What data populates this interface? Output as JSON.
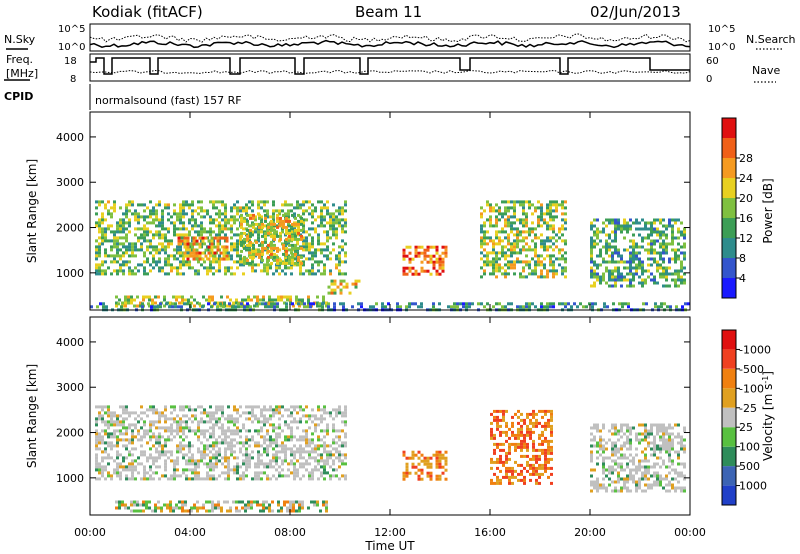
{
  "header": {
    "station": "Kodiak (fitACF)",
    "beam": "Beam 11",
    "date": "02/Jun/2013"
  },
  "control_panels": {
    "nsky_label": "N.Sky",
    "nsearch_label": "N.Search",
    "log_top_label": "10^5",
    "log_bottom_label": "10^0",
    "freq_label_line1": "Freq.",
    "freq_label_line2": "[MHz]",
    "freq_ticks": [
      "18",
      "8"
    ],
    "nave_label": "Nave",
    "nave_ticks": [
      "60",
      "0"
    ],
    "cpid_label": "CPID",
    "cpid_text": "normalsound (fast) 157 RF"
  },
  "chart_data": [
    {
      "type": "heatmap",
      "title": "Power",
      "ylabel": "Slant Range [km]",
      "xlabel": "",
      "x_ticks": [
        "00:00",
        "04:00",
        "08:00",
        "12:00",
        "16:00",
        "20:00",
        "00:00"
      ],
      "x_range_hours": [
        0,
        24
      ],
      "y_ticks": [
        1000,
        2000,
        3000,
        4000
      ],
      "ylim": [
        180,
        4550
      ],
      "colorbar": {
        "label": "Power [dB]",
        "ticks": [
          "4",
          "8",
          "12",
          "16",
          "20",
          "24",
          "28"
        ],
        "colors": [
          "#1a1aff",
          "#3355cc",
          "#2e8c8c",
          "#3c9e56",
          "#7fc040",
          "#e8d020",
          "#f59a20",
          "#f06018",
          "#e01010"
        ]
      },
      "blobs": [
        {
          "t": [
            0.2,
            10.2
          ],
          "r": [
            1000,
            2600
          ],
          "intensity": 0.45
        },
        {
          "t": [
            3.5,
            5.5
          ],
          "r": [
            1300,
            1800
          ],
          "intensity": 0.7
        },
        {
          "t": [
            6.0,
            8.5
          ],
          "r": [
            1200,
            2300
          ],
          "intensity": 0.6
        },
        {
          "t": [
            1.0,
            9.5
          ],
          "r": [
            300,
            500
          ],
          "intensity": 0.55
        },
        {
          "t": [
            9.5,
            10.8
          ],
          "r": [
            550,
            850
          ],
          "intensity": 0.6
        },
        {
          "t": [
            12.5,
            14.2
          ],
          "r": [
            950,
            1600
          ],
          "intensity": 0.8
        },
        {
          "t": [
            15.6,
            19.0
          ],
          "r": [
            900,
            2600
          ],
          "intensity": 0.5
        },
        {
          "t": [
            20.0,
            23.8
          ],
          "r": [
            700,
            2200
          ],
          "intensity": 0.4
        },
        {
          "t": [
            0.0,
            24.0
          ],
          "r": [
            190,
            350
          ],
          "intensity": 0.3
        }
      ]
    },
    {
      "type": "heatmap",
      "title": "Velocity",
      "ylabel": "Slant Range [km]",
      "xlabel": "Time UT",
      "x_ticks": [
        "00:00",
        "04:00",
        "08:00",
        "12:00",
        "16:00",
        "20:00",
        "00:00"
      ],
      "x_range_hours": [
        0,
        24
      ],
      "y_ticks": [
        1000,
        2000,
        3000,
        4000
      ],
      "ylim": [
        180,
        4550
      ],
      "colorbar": {
        "label": "Velocity [m s",
        "label_exponent": "-1",
        "label_close": "]",
        "ticks": [
          "1000",
          "500",
          "100",
          "25",
          "-25",
          "-100",
          "-500",
          "-1000"
        ],
        "colors": [
          "#2040c8",
          "#3c64b4",
          "#2e8c5a",
          "#58c040",
          "#c0c0c0",
          "#e0a020",
          "#f08010",
          "#f04020",
          "#e01010"
        ]
      },
      "blobs": [
        {
          "t": [
            0.2,
            10.2
          ],
          "r": [
            1000,
            2600
          ],
          "velocity": "near-zero"
        },
        {
          "t": [
            1.0,
            9.5
          ],
          "r": [
            300,
            500
          ],
          "velocity": "mixed"
        },
        {
          "t": [
            12.5,
            14.2
          ],
          "r": [
            950,
            1600
          ],
          "velocity": "negative"
        },
        {
          "t": [
            16.0,
            18.5
          ],
          "r": [
            900,
            2500
          ],
          "velocity": "negative"
        },
        {
          "t": [
            20.0,
            23.8
          ],
          "r": [
            700,
            2200
          ],
          "velocity": "near-zero"
        }
      ]
    }
  ]
}
